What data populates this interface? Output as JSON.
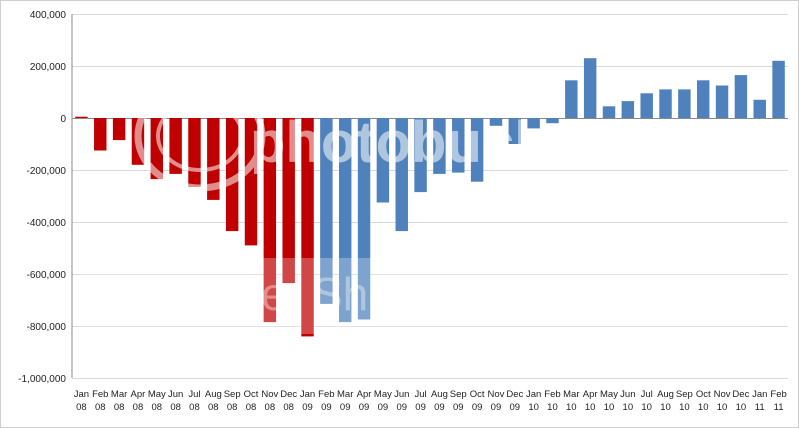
{
  "chart_data": {
    "type": "bar",
    "ylim": [
      -1000000,
      400000
    ],
    "y_ticks": [
      "400,000",
      "200,000",
      "0",
      "-200,000",
      "-400,000",
      "-600,000",
      "-800,000",
      "-1,000,000"
    ],
    "y_tick_values": [
      400000,
      200000,
      0,
      -200000,
      -400000,
      -600000,
      -800000,
      -1000000
    ],
    "grid": "horizontal",
    "legend": "none",
    "colors": {
      "first_period": "#c00000",
      "second_period": "#4f81bd"
    },
    "categories": [
      {
        "month": "Jan",
        "year": "08",
        "value": 5000,
        "period": "first_period"
      },
      {
        "month": "Feb",
        "year": "08",
        "value": -125000,
        "period": "first_period"
      },
      {
        "month": "Mar",
        "year": "08",
        "value": -85000,
        "period": "first_period"
      },
      {
        "month": "Apr",
        "year": "08",
        "value": -180000,
        "period": "first_period"
      },
      {
        "month": "May",
        "year": "08",
        "value": -235000,
        "period": "first_period"
      },
      {
        "month": "Jun",
        "year": "08",
        "value": -215000,
        "period": "first_period"
      },
      {
        "month": "Jul",
        "year": "08",
        "value": -265000,
        "period": "first_period"
      },
      {
        "month": "Aug",
        "year": "08",
        "value": -315000,
        "period": "first_period"
      },
      {
        "month": "Sep",
        "year": "08",
        "value": -435000,
        "period": "first_period"
      },
      {
        "month": "Oct",
        "year": "08",
        "value": -490000,
        "period": "first_period"
      },
      {
        "month": "Nov",
        "year": "08",
        "value": -785000,
        "period": "first_period"
      },
      {
        "month": "Dec",
        "year": "08",
        "value": -635000,
        "period": "first_period"
      },
      {
        "month": "Jan",
        "year": "09",
        "value": -840000,
        "period": "first_period"
      },
      {
        "month": "Feb",
        "year": "09",
        "value": -715000,
        "period": "second_period"
      },
      {
        "month": "Mar",
        "year": "09",
        "value": -785000,
        "period": "second_period"
      },
      {
        "month": "Apr",
        "year": "09",
        "value": -775000,
        "period": "second_period"
      },
      {
        "month": "May",
        "year": "09",
        "value": -325000,
        "period": "second_period"
      },
      {
        "month": "Jun",
        "year": "09",
        "value": -435000,
        "period": "second_period"
      },
      {
        "month": "Jul",
        "year": "09",
        "value": -285000,
        "period": "second_period"
      },
      {
        "month": "Aug",
        "year": "09",
        "value": -215000,
        "period": "second_period"
      },
      {
        "month": "Sep",
        "year": "09",
        "value": -210000,
        "period": "second_period"
      },
      {
        "month": "Oct",
        "year": "09",
        "value": -245000,
        "period": "second_period"
      },
      {
        "month": "Nov",
        "year": "09",
        "value": -30000,
        "period": "second_period"
      },
      {
        "month": "Dec",
        "year": "09",
        "value": -100000,
        "period": "second_period"
      },
      {
        "month": "Jan",
        "year": "10",
        "value": -40000,
        "period": "second_period"
      },
      {
        "month": "Feb",
        "year": "10",
        "value": -20000,
        "period": "second_period"
      },
      {
        "month": "Mar",
        "year": "10",
        "value": 145000,
        "period": "second_period"
      },
      {
        "month": "Apr",
        "year": "10",
        "value": 230000,
        "period": "second_period"
      },
      {
        "month": "May",
        "year": "10",
        "value": 45000,
        "period": "second_period"
      },
      {
        "month": "Jun",
        "year": "10",
        "value": 65000,
        "period": "second_period"
      },
      {
        "month": "Jul",
        "year": "10",
        "value": 95000,
        "period": "second_period"
      },
      {
        "month": "Aug",
        "year": "10",
        "value": 110000,
        "period": "second_period"
      },
      {
        "month": "Sep",
        "year": "10",
        "value": 110000,
        "period": "second_period"
      },
      {
        "month": "Oct",
        "year": "10",
        "value": 145000,
        "period": "second_period"
      },
      {
        "month": "Nov",
        "year": "10",
        "value": 125000,
        "period": "second_period"
      },
      {
        "month": "Dec",
        "year": "10",
        "value": 165000,
        "period": "second_period"
      },
      {
        "month": "Jan",
        "year": "11",
        "value": 70000,
        "period": "second_period"
      },
      {
        "month": "Feb",
        "year": "11",
        "value": 220000,
        "period": "second_period"
      }
    ]
  },
  "watermark": {
    "brand_text": "photobucket",
    "slogan_text": "Join free. Share privately."
  }
}
